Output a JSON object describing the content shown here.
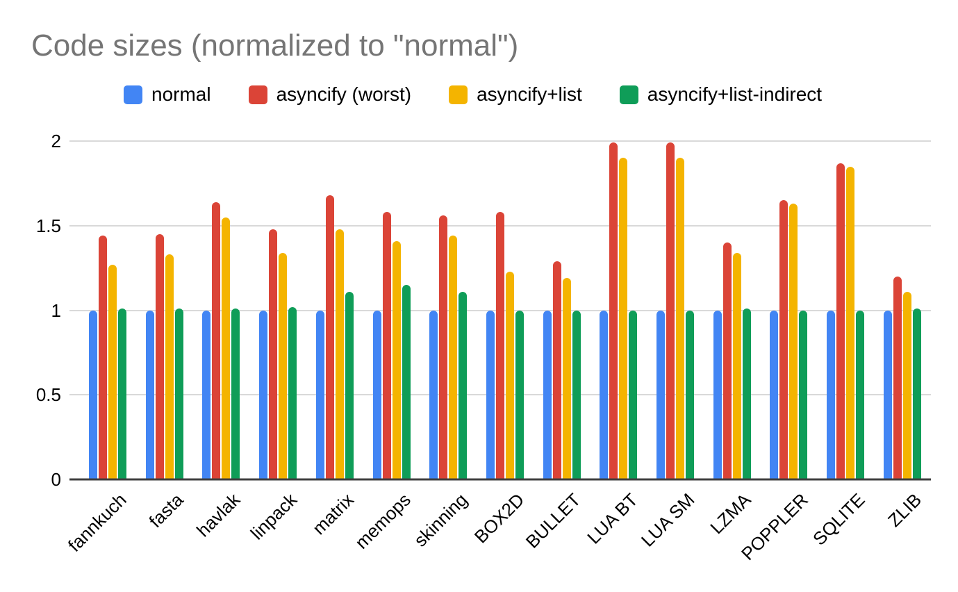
{
  "chart_data": {
    "type": "bar",
    "title": "Code sizes (normalized to \"normal\")",
    "title_color": "#757575",
    "categories": [
      "fannkuch",
      "fasta",
      "havlak",
      "linpack",
      "matrix",
      "memops",
      "skinning",
      "BOX2D",
      "BULLET",
      "LUA BT",
      "LUA SM",
      "LZMA",
      "POPPLER",
      "SQLITE",
      "ZLIB"
    ],
    "series": [
      {
        "name": "normal",
        "color": "#4285F4",
        "values": [
          1.0,
          1.0,
          1.0,
          1.0,
          1.0,
          1.0,
          1.0,
          1.0,
          1.0,
          1.0,
          1.0,
          1.0,
          1.0,
          1.0,
          1.0
        ]
      },
      {
        "name": "asyncify (worst)",
        "color": "#DB4437",
        "values": [
          1.44,
          1.45,
          1.64,
          1.48,
          1.68,
          1.58,
          1.56,
          1.58,
          1.29,
          1.99,
          1.99,
          1.4,
          1.65,
          1.87,
          1.2
        ]
      },
      {
        "name": "asyncify+list",
        "color": "#F4B400",
        "values": [
          1.27,
          1.33,
          1.55,
          1.34,
          1.48,
          1.41,
          1.44,
          1.23,
          1.19,
          1.9,
          1.9,
          1.34,
          1.63,
          1.85,
          1.11
        ]
      },
      {
        "name": "asyncify+list-indirect",
        "color": "#0F9D58",
        "values": [
          1.01,
          1.01,
          1.01,
          1.02,
          1.11,
          1.15,
          1.11,
          1.0,
          1.0,
          1.0,
          1.0,
          1.01,
          1.0,
          1.0,
          1.01
        ]
      }
    ],
    "xlabel": "",
    "ylabel": "",
    "y_ticks": [
      0,
      0.5,
      1,
      1.5,
      2
    ],
    "ylim": [
      0,
      2
    ],
    "grid": true,
    "gridline_color": "#d9d9d9",
    "axis_line_color": "#3f3f3f",
    "legend_position": "top",
    "x_tick_rotation_deg": 45
  }
}
